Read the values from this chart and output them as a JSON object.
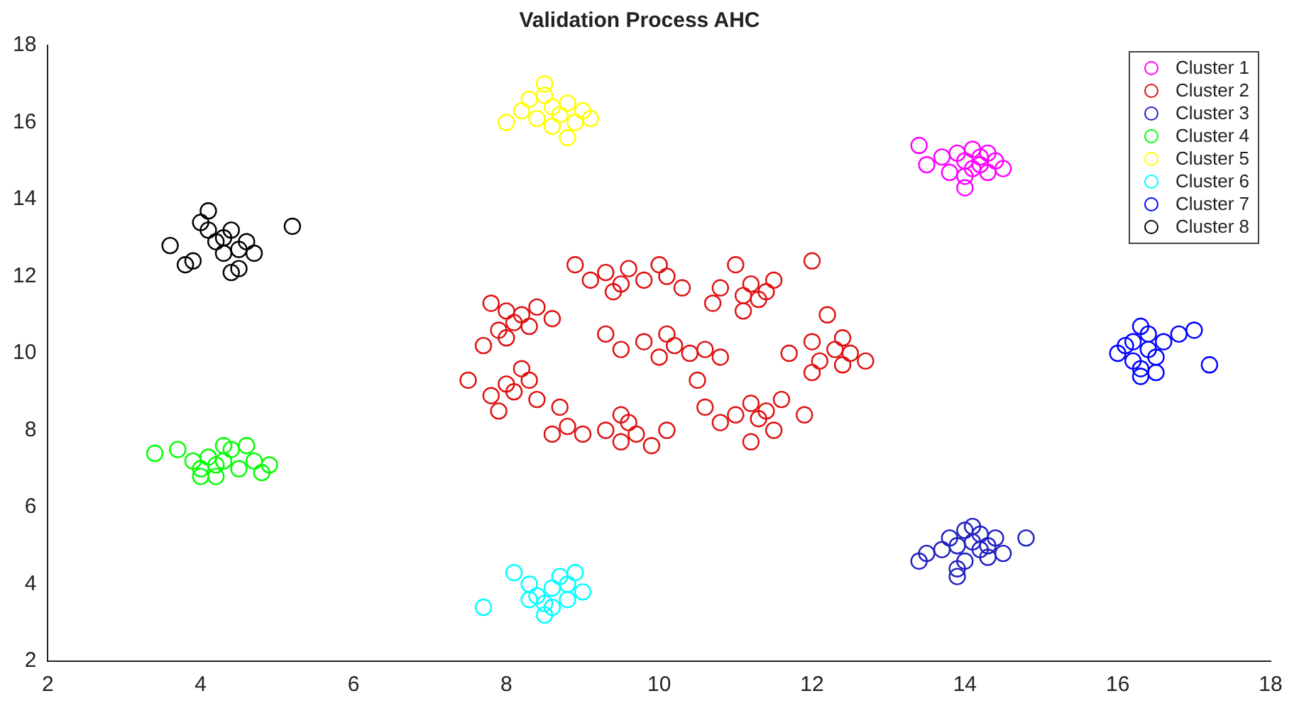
{
  "chart_data": {
    "type": "scatter",
    "title": "Validation Process AHC",
    "xlim": [
      2,
      18
    ],
    "ylim": [
      2,
      18
    ],
    "xticks": [
      2,
      4,
      6,
      8,
      10,
      12,
      14,
      16,
      18
    ],
    "yticks": [
      2,
      4,
      6,
      8,
      10,
      12,
      14,
      16,
      18
    ],
    "grid": false,
    "legend": "top right",
    "marker": "circle",
    "series": [
      {
        "name": "Cluster 1",
        "color": "#ff00ff",
        "x": [
          13.4,
          13.5,
          13.7,
          13.8,
          13.9,
          14.0,
          14.0,
          14.1,
          14.1,
          14.2,
          14.2,
          14.3,
          14.3,
          14.4,
          14.5,
          14.0
        ],
        "values": [
          15.4,
          14.9,
          15.1,
          14.7,
          15.2,
          15.0,
          14.6,
          15.3,
          14.8,
          15.1,
          14.9,
          15.2,
          14.7,
          15.0,
          14.8,
          14.3
        ]
      },
      {
        "name": "Cluster 2",
        "color": "#e01010",
        "x": [
          7.8,
          8.0,
          8.1,
          8.2,
          8.3,
          7.9,
          8.4,
          8.6,
          8.0,
          8.9,
          9.1,
          9.3,
          9.5,
          9.6,
          9.8,
          10.0,
          10.1,
          9.4,
          10.3,
          10.8,
          11.0,
          11.1,
          11.2,
          11.3,
          11.4,
          11.5,
          11.1,
          12.0,
          10.7,
          11.7,
          12.0,
          12.1,
          12.3,
          12.4,
          12.5,
          12.7,
          12.2,
          12.4,
          12.0,
          10.6,
          10.8,
          11.0,
          11.2,
          11.3,
          11.4,
          11.6,
          11.5,
          11.2,
          11.9,
          8.8,
          9.0,
          9.3,
          9.5,
          9.6,
          9.7,
          9.9,
          9.5,
          10.1,
          8.6,
          7.5,
          7.8,
          8.0,
          8.1,
          8.3,
          8.4,
          8.2,
          7.9,
          8.7,
          7.7,
          9.3,
          9.5,
          9.8,
          10.0,
          10.2,
          10.4,
          10.6,
          10.8,
          10.1,
          10.5
        ],
        "values": [
          11.3,
          11.1,
          10.8,
          11.0,
          10.7,
          10.6,
          11.2,
          10.9,
          10.4,
          12.3,
          11.9,
          12.1,
          11.8,
          12.2,
          11.9,
          12.3,
          12.0,
          11.6,
          11.7,
          11.7,
          12.3,
          11.5,
          11.8,
          11.4,
          11.6,
          11.9,
          11.1,
          12.4,
          11.3,
          10.0,
          10.3,
          9.8,
          10.1,
          9.7,
          10.0,
          9.8,
          11.0,
          10.4,
          9.5,
          8.6,
          8.2,
          8.4,
          8.7,
          8.3,
          8.5,
          8.8,
          8.0,
          7.7,
          8.4,
          8.1,
          7.9,
          8.0,
          7.7,
          8.2,
          7.9,
          7.6,
          8.4,
          8.0,
          7.9,
          9.3,
          8.9,
          9.2,
          9.0,
          9.3,
          8.8,
          9.6,
          8.5,
          8.6,
          10.2,
          10.5,
          10.1,
          10.3,
          9.9,
          10.2,
          10.0,
          10.1,
          9.9,
          10.5,
          9.3
        ]
      },
      {
        "name": "Cluster 3",
        "color": "#2020c0",
        "x": [
          13.4,
          13.5,
          13.7,
          13.8,
          13.9,
          14.0,
          14.0,
          14.1,
          14.2,
          14.2,
          14.3,
          14.4,
          14.5,
          14.8,
          13.9,
          13.9,
          14.1,
          14.3
        ],
        "values": [
          4.6,
          4.8,
          4.9,
          5.2,
          5.0,
          5.4,
          4.6,
          5.1,
          5.3,
          4.9,
          5.0,
          5.2,
          4.8,
          5.2,
          4.4,
          4.2,
          5.5,
          4.7
        ]
      },
      {
        "name": "Cluster 4",
        "color": "#00ff00",
        "x": [
          3.4,
          3.7,
          3.9,
          4.0,
          4.1,
          4.2,
          4.2,
          4.3,
          4.4,
          4.5,
          4.6,
          4.8,
          4.9,
          4.0,
          4.3,
          4.7
        ],
        "values": [
          7.4,
          7.5,
          7.2,
          7.0,
          7.3,
          7.1,
          6.8,
          7.2,
          7.5,
          7.0,
          7.6,
          6.9,
          7.1,
          6.8,
          7.6,
          7.2
        ]
      },
      {
        "name": "Cluster 5",
        "color": "#ffff00",
        "x": [
          8.0,
          8.2,
          8.3,
          8.4,
          8.5,
          8.6,
          8.6,
          8.7,
          8.8,
          8.9,
          9.0,
          9.1,
          8.5,
          8.8
        ],
        "values": [
          16.0,
          16.3,
          16.6,
          16.1,
          17.0,
          16.4,
          15.9,
          16.2,
          16.5,
          16.0,
          16.3,
          16.1,
          16.7,
          15.6
        ]
      },
      {
        "name": "Cluster 6",
        "color": "#00ffff",
        "x": [
          7.7,
          8.1,
          8.3,
          8.4,
          8.5,
          8.6,
          8.7,
          8.8,
          8.9,
          9.0,
          8.5,
          8.3,
          8.8,
          8.6
        ],
        "values": [
          3.4,
          4.3,
          4.0,
          3.7,
          3.5,
          3.9,
          4.2,
          3.6,
          4.3,
          3.8,
          3.2,
          3.6,
          4.0,
          3.4
        ]
      },
      {
        "name": "Cluster 7",
        "color": "#0000ff",
        "x": [
          16.0,
          16.1,
          16.2,
          16.3,
          16.3,
          16.4,
          16.5,
          16.6,
          16.5,
          16.4,
          16.8,
          17.0,
          17.2,
          16.3,
          16.2
        ],
        "values": [
          10.0,
          10.2,
          9.8,
          10.7,
          9.6,
          10.1,
          9.9,
          10.3,
          9.5,
          10.5,
          10.5,
          10.6,
          9.7,
          9.4,
          10.3
        ]
      },
      {
        "name": "Cluster 8",
        "color": "#000000",
        "x": [
          3.6,
          3.9,
          4.0,
          4.1,
          4.2,
          4.3,
          4.3,
          4.4,
          4.5,
          4.6,
          4.5,
          4.7,
          5.2,
          4.1,
          4.4,
          3.8
        ],
        "values": [
          12.8,
          12.4,
          13.4,
          13.7,
          12.9,
          13.0,
          12.6,
          13.2,
          12.7,
          12.9,
          12.2,
          12.6,
          13.3,
          13.2,
          12.1,
          12.3
        ]
      }
    ]
  }
}
